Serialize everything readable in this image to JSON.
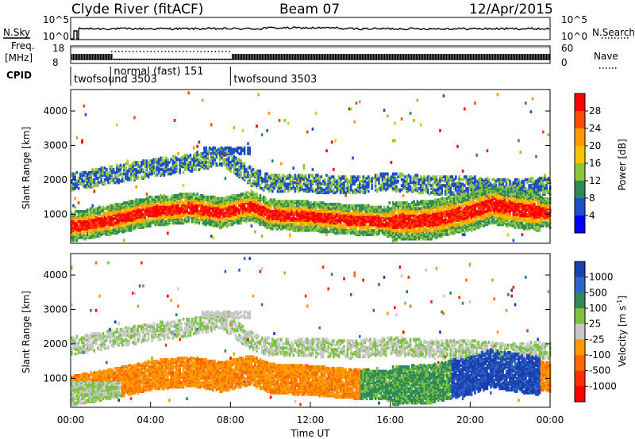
{
  "header": {
    "station": "Clyde River (fitACF)",
    "beam": "Beam 07",
    "date": "12/Apr/2015"
  },
  "noise_panel": {
    "left_label": "N.Sky",
    "right_label": "N.Search",
    "left_ticks": [
      "10^5",
      "10^0"
    ],
    "right_ticks": [
      "10^5",
      "10^0"
    ]
  },
  "freq_panel": {
    "left_label_1": "Freq.",
    "left_label_2": "[MHz]",
    "right_label": "Nave",
    "left_ticks": [
      "18",
      "8"
    ],
    "right_ticks": [
      "60",
      "0"
    ]
  },
  "cpid": {
    "label": "CPID",
    "segments": [
      {
        "name": "twofsound 3503",
        "start_hour": 0.0,
        "end_hour": 2.0
      },
      {
        "name": "normal (fast) 151",
        "start_hour": 2.0,
        "end_hour": 8.0
      },
      {
        "name": "twofsound 3503",
        "start_hour": 8.0,
        "end_hour": 24.0
      }
    ]
  },
  "chart_data": [
    {
      "type": "heatmap",
      "quantity": "power",
      "ylabel": "Slant Range [km]",
      "ylim": [
        180,
        4600
      ],
      "yticks": [
        1000,
        2000,
        3000,
        4000
      ],
      "xlim_hours": [
        0,
        24
      ],
      "colorbar_label": "Power [dB]",
      "colorbar_ticks": [
        "28",
        "24",
        "20",
        "16",
        "12",
        "8",
        "4"
      ],
      "colorbar_colors": [
        "#ff0000",
        "#ff4a00",
        "#ff9a00",
        "#f5c400",
        "#8cc63f",
        "#2e8b57",
        "#1f4fc4",
        "#0000ff"
      ]
    },
    {
      "type": "heatmap",
      "quantity": "velocity",
      "ylabel": "Slant Range [km]",
      "ylim": [
        180,
        4600
      ],
      "yticks": [
        1000,
        2000,
        3000,
        4000
      ],
      "xlim_hours": [
        0,
        24
      ],
      "xlabel": "Time UT",
      "xticks": [
        "00:00",
        "04:00",
        "08:00",
        "12:00",
        "16:00",
        "20:00",
        "00:00"
      ],
      "colorbar_label": "Velocity [m s",
      "colorbar_label_sup": "-1",
      "colorbar_label_end": "]",
      "colorbar_ticks": [
        "1000",
        "500",
        "100",
        "25",
        "-25",
        "-100",
        "-500",
        "-1000"
      ],
      "colorbar_colors": [
        "#1a3fb0",
        "#2e66c8",
        "#2e8b57",
        "#7dc242",
        "#c8c8c8",
        "#ff9a00",
        "#ff6a00",
        "#ff3000",
        "#ff0000"
      ]
    }
  ]
}
